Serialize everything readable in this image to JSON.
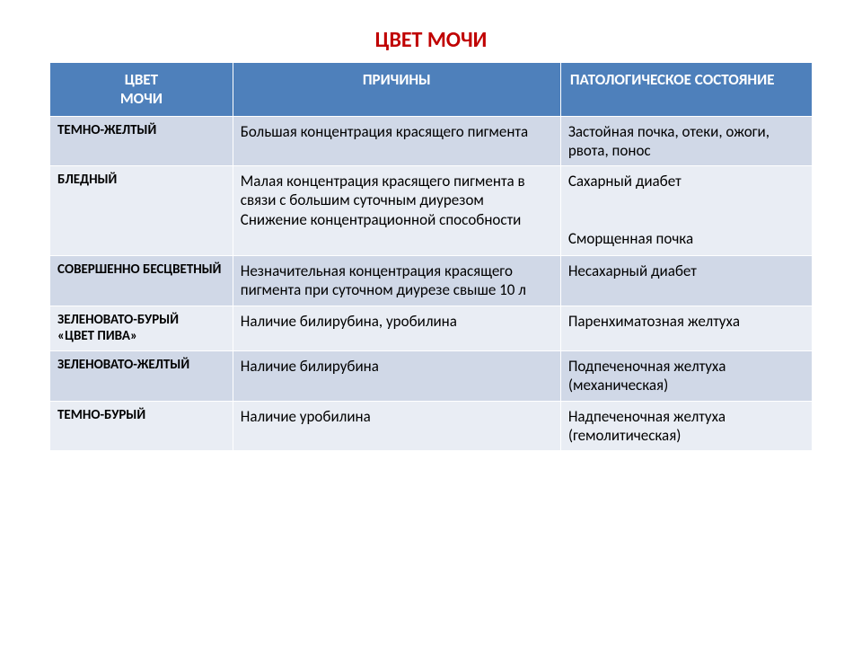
{
  "title": "ЦВЕТ МОЧИ",
  "table": {
    "columns": [
      "ЦВЕТ\nМОЧИ",
      "ПРИЧИНЫ",
      "ПАТОЛОГИЧЕСКОЕ СОСТОЯНИЕ"
    ],
    "column_widths_pct": [
      24,
      43,
      33
    ],
    "header_bg": "#4e80bb",
    "header_fg": "#ffffff",
    "row_bg_dark": "#d0d8e7",
    "row_bg_light": "#e9edf4",
    "border_color": "#ffffff",
    "title_color": "#c00000",
    "title_fontsize": 24,
    "header_fontsize": 17,
    "cell_fontsize": 17,
    "firstcol_fontsize": 15,
    "rows": [
      {
        "shade": "dark",
        "c0": "ТЕМНО-ЖЕЛТЫЙ",
        "c1": "Большая концентрация красящего пигмента",
        "c2": "Застойная почка, отеки, ожоги, рвота, понос"
      },
      {
        "shade": "light",
        "c0": " БЛЕДНЫЙ",
        "c1": "Малая концентрация красящего пигмента в связи с большим суточным диурезом\nСнижение концентрационной способности",
        "c2": "Сахарный диабет\n\n\n Сморщенная почка"
      },
      {
        "shade": "dark",
        "c0": "СОВЕРШЕННО БЕСЦВЕТНЫЙ",
        "c1": "Незначительная концентрация красящего пигмента при суточном диурезе свыше 10 л",
        "c2": "Несахарный диабет"
      },
      {
        "shade": "light",
        "c0": "ЗЕЛЕНОВАТО-БУРЫЙ\n«ЦВЕТ ПИВА»",
        "c1": "Наличие билирубина, уробилина",
        "c2": "Паренхиматозная желтуха"
      },
      {
        "shade": "dark",
        "c0": "ЗЕЛЕНОВАТО-ЖЕЛТЫЙ",
        "c1": "Наличие билирубина",
        "c2": "Подпеченочная желтуха (механическая)"
      },
      {
        "shade": "light",
        "c0": "ТЕМНО-БУРЫЙ",
        "c1": "Наличие уробилина",
        "c2": "Надпеченочная желтуха (гемолитическая)"
      }
    ]
  }
}
